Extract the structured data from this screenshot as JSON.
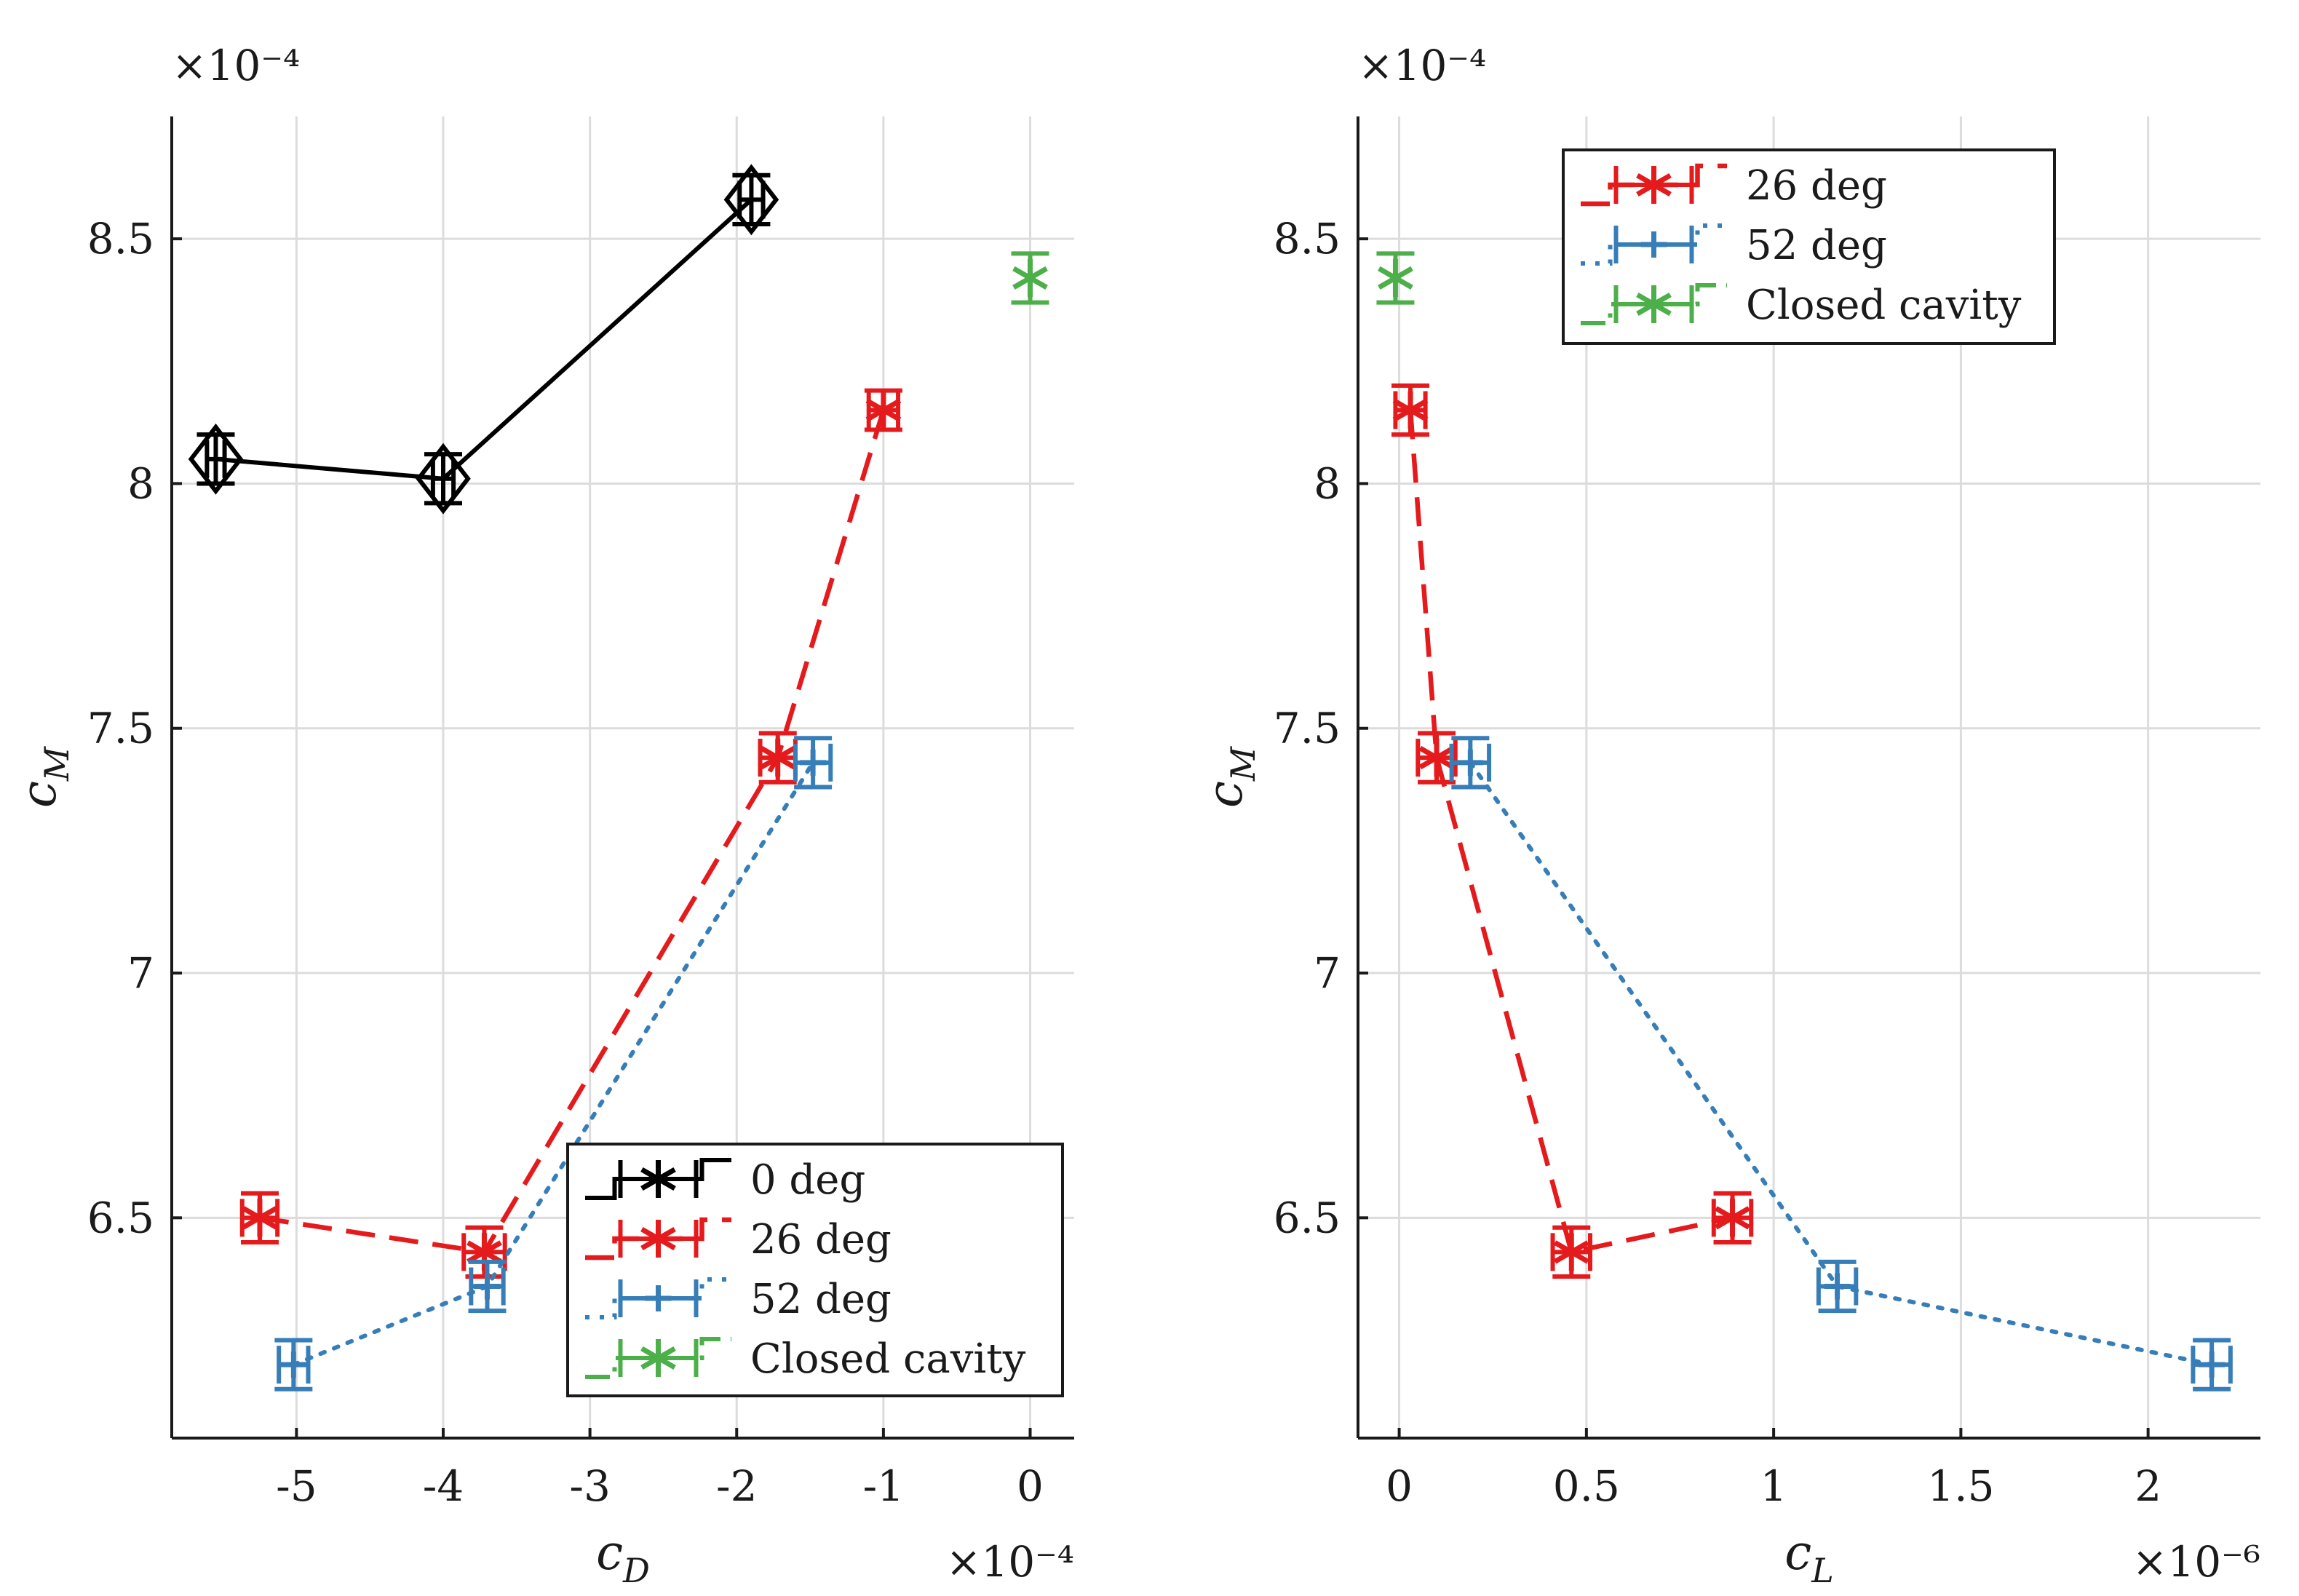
{
  "figure": {
    "colors": {
      "c0": "#000000",
      "c26": "#e41a1c",
      "c52": "#377eb8",
      "closed": "#4daf4a"
    }
  },
  "chart_data": [
    {
      "type": "scatter",
      "name": "cM-vs-cD",
      "xlabel_base": "c",
      "xlabel_sub": "D",
      "ylabel_base": "c",
      "ylabel_sub": "M",
      "x_exponent": "×10⁻⁴",
      "y_exponent": "×10⁻⁴",
      "xlim": [
        -5.85,
        0.3
      ],
      "ylim": [
        6.05,
        8.75
      ],
      "xticks": [
        -5,
        -4,
        -3,
        -2,
        -1,
        0
      ],
      "yticks": [
        6.5,
        7,
        7.5,
        8,
        8.5
      ],
      "xtick_labels": [
        "-5",
        "-4",
        "-3",
        "-2",
        "-1",
        "0"
      ],
      "ytick_labels": [
        "6.5",
        "7",
        "7.5",
        "8",
        "8.5"
      ],
      "grid": true,
      "legend_position": "bottom-right",
      "legend": [
        "0 deg",
        "26 deg",
        "52 deg",
        "Closed cavity"
      ],
      "series": [
        {
          "name": "0 deg",
          "color": "#000000",
          "line": "solid",
          "marker": "diamond",
          "x": [
            -5.55,
            -4.0,
            -1.9
          ],
          "y": [
            8.05,
            8.01,
            8.58
          ],
          "xerr": [
            0.06,
            0.07,
            0.08
          ],
          "yerr": [
            0.05,
            0.05,
            0.05
          ]
        },
        {
          "name": "26 deg",
          "color": "#e41a1c",
          "line": "dashed",
          "marker": "asterisk",
          "x": [
            -5.25,
            -3.72,
            -1.72,
            -1.0
          ],
          "y": [
            6.5,
            6.43,
            7.44,
            8.15
          ],
          "xerr": [
            0.12,
            0.14,
            0.12,
            0.1
          ],
          "yerr": [
            0.05,
            0.05,
            0.05,
            0.04
          ]
        },
        {
          "name": "52 deg",
          "color": "#377eb8",
          "line": "dotted",
          "marker": "plus",
          "x": [
            -5.02,
            -3.7,
            -1.48
          ],
          "y": [
            6.2,
            6.36,
            7.43
          ],
          "xerr": [
            0.1,
            0.11,
            0.12
          ],
          "yerr": [
            0.05,
            0.05,
            0.05
          ]
        },
        {
          "name": "Closed cavity",
          "color": "#4daf4a",
          "line": "dashdot",
          "marker": "asterisk",
          "x": [
            0.0
          ],
          "y": [
            8.42
          ],
          "xerr": [
            0.0
          ],
          "yerr": [
            0.05
          ]
        }
      ]
    },
    {
      "type": "scatter",
      "name": "cM-vs-cL",
      "xlabel_base": "c",
      "xlabel_sub": "L",
      "ylabel_base": "c",
      "ylabel_sub": "M",
      "x_exponent": "×10⁻⁶",
      "y_exponent": "×10⁻⁴",
      "xlim": [
        -0.11,
        2.3
      ],
      "ylim": [
        6.05,
        8.75
      ],
      "xticks": [
        0,
        0.5,
        1,
        1.5,
        2
      ],
      "yticks": [
        6.5,
        7,
        7.5,
        8,
        8.5
      ],
      "xtick_labels": [
        "0",
        "0.5",
        "1",
        "1.5",
        "2"
      ],
      "ytick_labels": [
        "6.5",
        "7",
        "7.5",
        "8",
        "8.5"
      ],
      "grid": true,
      "legend_position": "top-right",
      "legend": [
        "26 deg",
        "52 deg",
        "Closed cavity"
      ],
      "series": [
        {
          "name": "26 deg",
          "color": "#e41a1c",
          "line": "dashed",
          "marker": "asterisk",
          "x": [
            0.03,
            0.1,
            0.46,
            0.89
          ],
          "y": [
            8.15,
            7.44,
            6.43,
            6.5
          ],
          "xerr": [
            0.04,
            0.05,
            0.05,
            0.05
          ],
          "yerr": [
            0.05,
            0.05,
            0.05,
            0.05
          ]
        },
        {
          "name": "52 deg",
          "color": "#377eb8",
          "line": "dotted",
          "marker": "plus",
          "x": [
            0.19,
            1.17,
            2.17
          ],
          "y": [
            7.43,
            6.36,
            6.2
          ],
          "xerr": [
            0.05,
            0.05,
            0.05
          ],
          "yerr": [
            0.05,
            0.05,
            0.05
          ]
        },
        {
          "name": "Closed cavity",
          "color": "#4daf4a",
          "line": "dashdot",
          "marker": "asterisk",
          "x": [
            -0.01
          ],
          "y": [
            8.42
          ],
          "xerr": [
            0.0
          ],
          "yerr": [
            0.05
          ]
        }
      ]
    }
  ]
}
